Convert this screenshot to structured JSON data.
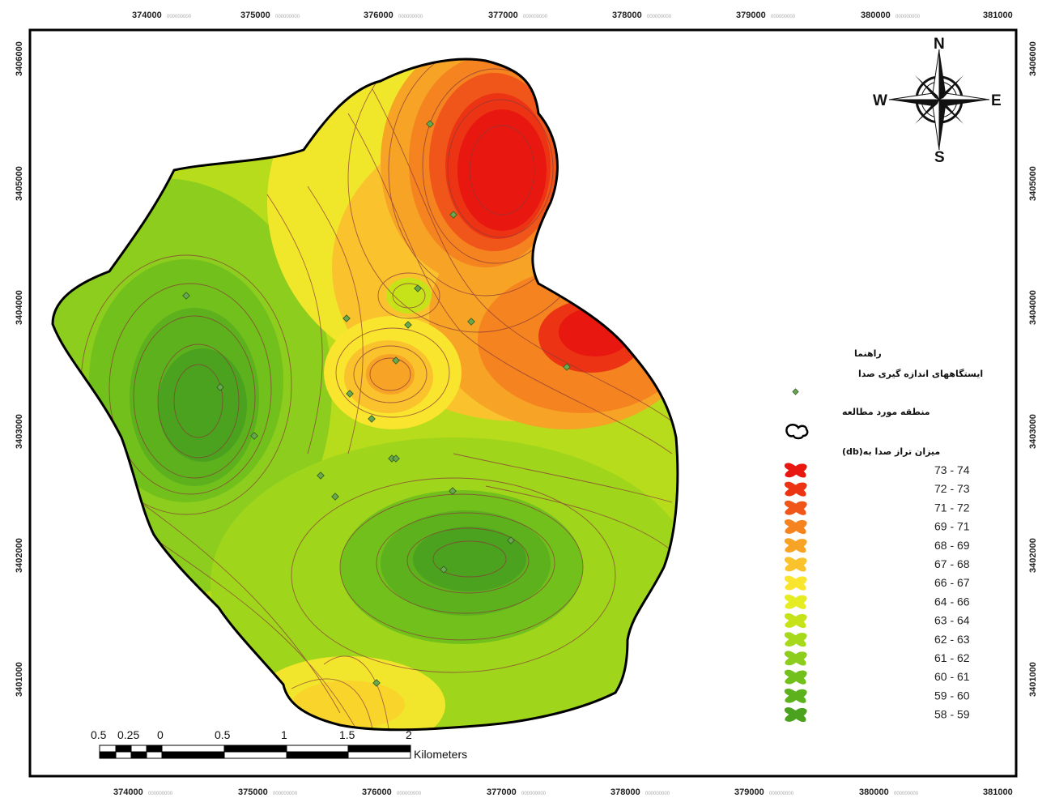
{
  "map": {
    "x_ticks": [
      "374000",
      "375000",
      "376000",
      "377000",
      "378000",
      "379000",
      "380000",
      "381000"
    ],
    "y_ticks": [
      "3406000",
      "3405000",
      "3404000",
      "3403000",
      "3402000",
      "3401000"
    ],
    "tick_suffix": "000000000"
  },
  "legend": {
    "title": "راهنما",
    "stations_label": "ایستگاههای اندازه گیری صدا",
    "study_area_label": "منطقه مورد مطالعه",
    "noise_level_label": "میزان تراز صدا به(db)",
    "classes": [
      {
        "label": "73 - 74",
        "color": "#e8170f"
      },
      {
        "label": "72 - 73",
        "color": "#ec3414"
      },
      {
        "label": "71 - 72",
        "color": "#f05519"
      },
      {
        "label": "69 - 71",
        "color": "#f5831f"
      },
      {
        "label": "68 - 69",
        "color": "#f7a326"
      },
      {
        "label": "67 - 68",
        "color": "#fac22c"
      },
      {
        "label": "66 - 67",
        "color": "#f9e52e"
      },
      {
        "label": "64 - 66",
        "color": "#e6ec22"
      },
      {
        "label": "63 - 64",
        "color": "#c6e31a"
      },
      {
        "label": "62 - 63",
        "color": "#a6d81b"
      },
      {
        "label": "61 - 62",
        "color": "#8ccd1d"
      },
      {
        "label": "60 - 61",
        "color": "#72c01c"
      },
      {
        "label": "59 - 60",
        "color": "#5cb11d"
      },
      {
        "label": "58 - 59",
        "color": "#4ba21f"
      }
    ]
  },
  "north_arrow": {
    "n": "N",
    "s": "S",
    "e": "E",
    "w": "W"
  },
  "scale_bar": {
    "labels": [
      "0.5",
      "0.25",
      "0",
      "0.5",
      "1",
      "1.5",
      "2"
    ],
    "unit": "Kilometers"
  },
  "colors": {
    "frame": "#000000",
    "contour": "#8a3a3a",
    "station": "#6aa84f"
  }
}
